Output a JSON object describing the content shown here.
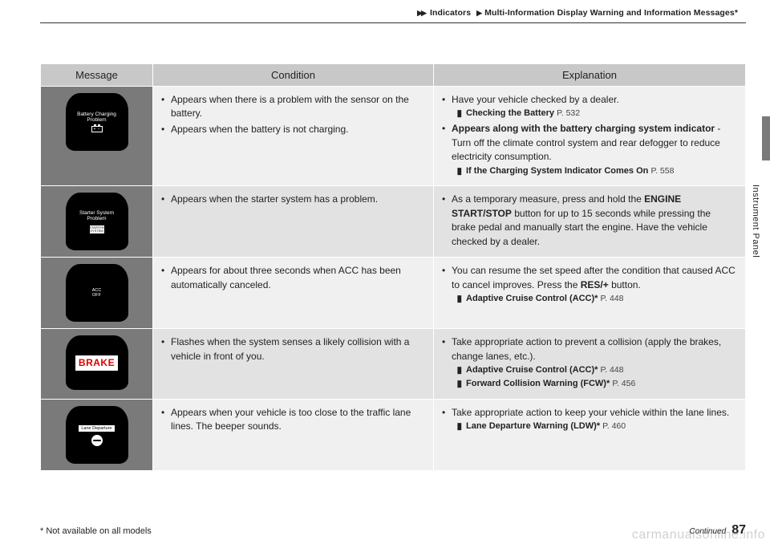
{
  "breadcrumb": {
    "arrows": "▶▶",
    "part1": "Indicators",
    "arrow2": "▶",
    "part2": "Multi-Information Display Warning and Information Messages",
    "star": "*"
  },
  "sideTab": "Instrument Panel",
  "headers": {
    "c1": "Message",
    "c2": "Condition",
    "c3": "Explanation"
  },
  "rows": [
    {
      "iconType": "battery",
      "iconTitle": "Battery Charging Problem",
      "condition": [
        "Appears when there is a problem with the sensor on the battery.",
        "Appears when the battery is not charging."
      ],
      "explanation": [
        {
          "text": "Have your vehicle checked by a dealer."
        },
        {
          "ref": "Checking the Battery",
          "page": "P. 532"
        },
        {
          "boldLead": "Appears along with the battery charging system indicator",
          "text": " - Turn off the climate control system and rear defogger to reduce electricity consumption."
        },
        {
          "ref": "If the Charging System Indicator Comes On",
          "page": "P. 558"
        }
      ]
    },
    {
      "iconType": "starter",
      "iconTitle": "Starter System Problem",
      "starterBox": "STARTER SYSTEM",
      "condition": [
        "Appears when the starter system has a problem."
      ],
      "explanation": [
        {
          "text_pre": "As a temporary measure, press and hold the ",
          "bold": "ENGINE START/STOP",
          "text_post": " button for up to 15 seconds while pressing the brake pedal and manually start the engine. Have the vehicle checked by a dealer."
        }
      ]
    },
    {
      "iconType": "acc",
      "accTop": "ACC",
      "accBot": "OFF",
      "condition": [
        "Appears for about three seconds when ACC has been automatically canceled."
      ],
      "explanation": [
        {
          "text_pre": "You can resume the set speed after the condition that caused ACC to cancel improves. Press the ",
          "bold": "RES/+",
          "text_post": " button."
        },
        {
          "ref": "Adaptive Cruise Control (ACC)*",
          "page": "P. 448"
        }
      ]
    },
    {
      "iconType": "brake",
      "brakeLabel": "BRAKE",
      "condition": [
        "Flashes when the system senses a likely collision with a vehicle in front of you."
      ],
      "explanation": [
        {
          "text": "Take appropriate action to prevent a collision (apply the brakes, change lanes, etc.)."
        },
        {
          "ref": "Adaptive Cruise Control (ACC)*",
          "page": "P. 448"
        },
        {
          "ref": "Forward Collision Warning (FCW)*",
          "page": "P. 456"
        }
      ]
    },
    {
      "iconType": "lane",
      "laneLabel": "Lane Departure",
      "condition": [
        "Appears when your vehicle is too close to the traffic lane lines. The beeper sounds."
      ],
      "explanation": [
        {
          "text": "Take appropriate action to keep your vehicle within the lane lines."
        },
        {
          "ref": "Lane Departure Warning (LDW)*",
          "page": "P. 460"
        }
      ]
    }
  ],
  "footnote": "* Not available on all models",
  "continued": "Continued",
  "pageNumber": "87",
  "watermark": "carmanualsonline.info"
}
